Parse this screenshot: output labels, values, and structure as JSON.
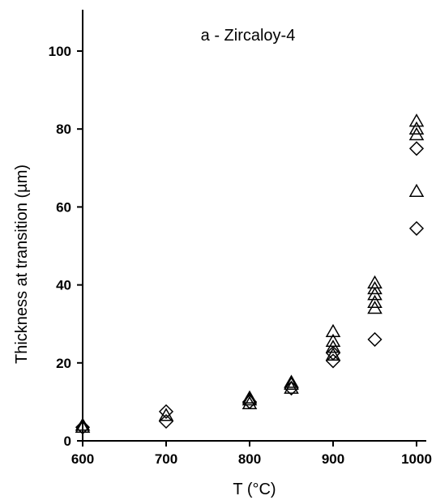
{
  "chart_data": {
    "type": "scatter",
    "title": "a - Zircaloy-4",
    "xlabel": "T  (°C)",
    "ylabel": "Thickness at transition (µm)",
    "xlim": [
      600,
      1000
    ],
    "ylim": [
      0,
      110
    ],
    "xticks": [
      600,
      700,
      800,
      900,
      1000
    ],
    "yticks": [
      0,
      20,
      40,
      60,
      80,
      100
    ],
    "grid": false,
    "series": [
      {
        "marker": "triangle",
        "points": [
          [
            600,
            3.5
          ],
          [
            600,
            4.0
          ],
          [
            700,
            6.5
          ],
          [
            800,
            9.5
          ],
          [
            800,
            10.5
          ],
          [
            800,
            11.0
          ],
          [
            850,
            13.5
          ],
          [
            850,
            14.5
          ],
          [
            850,
            15.0
          ],
          [
            900,
            22.0
          ],
          [
            900,
            24.0
          ],
          [
            900,
            25.5
          ],
          [
            900,
            28.0
          ],
          [
            950,
            34.0
          ],
          [
            950,
            35.5
          ],
          [
            950,
            37.5
          ],
          [
            950,
            39.0
          ],
          [
            950,
            40.5
          ],
          [
            1000,
            64.0
          ],
          [
            1000,
            78.5
          ],
          [
            1000,
            80.0
          ],
          [
            1000,
            82.0
          ]
        ]
      },
      {
        "marker": "diamond",
        "points": [
          [
            600,
            3.5
          ],
          [
            700,
            5.0
          ],
          [
            700,
            7.5
          ],
          [
            800,
            10.0
          ],
          [
            850,
            13.5
          ],
          [
            900,
            20.5
          ],
          [
            900,
            22.5
          ],
          [
            950,
            26.0
          ],
          [
            1000,
            54.5
          ],
          [
            1000,
            75.0
          ]
        ]
      }
    ]
  }
}
